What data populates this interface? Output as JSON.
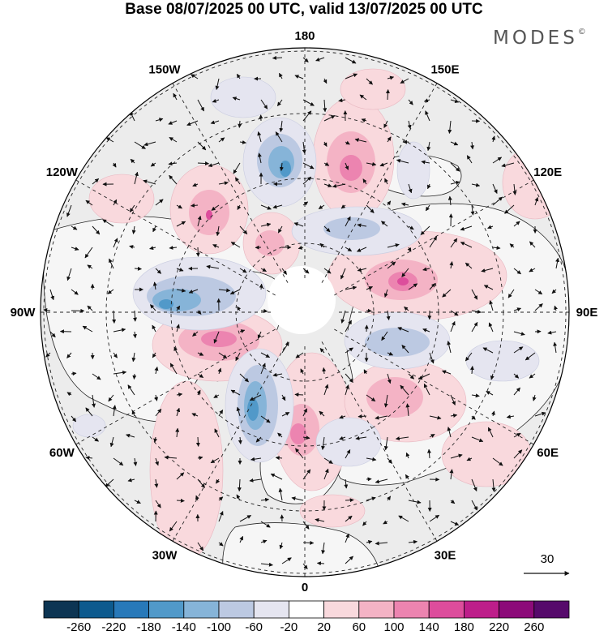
{
  "title": "Base 08/07/2025 00 UTC, valid 13/07/2025 00 UTC",
  "brand": {
    "name": "MODES",
    "mark": "©"
  },
  "longitude_labels": [
    {
      "lon": 180,
      "text": "180"
    },
    {
      "lon": 150,
      "text": "150E"
    },
    {
      "lon": 120,
      "text": "120E"
    },
    {
      "lon": 90,
      "text": "90E"
    },
    {
      "lon": 60,
      "text": "60E"
    },
    {
      "lon": 30,
      "text": "30E"
    },
    {
      "lon": 0,
      "text": "0"
    },
    {
      "lon": -30,
      "text": "30W"
    },
    {
      "lon": -60,
      "text": "60W"
    },
    {
      "lon": -90,
      "text": "90W"
    },
    {
      "lon": -120,
      "text": "120W"
    },
    {
      "lon": -150,
      "text": "150W"
    }
  ],
  "reference_vector": {
    "value": "30"
  },
  "colorbar": {
    "colors": [
      "#0d3553",
      "#0d5a8e",
      "#2879b9",
      "#5199c9",
      "#86b4d8",
      "#bcc9e2",
      "#e5e5f0",
      "#ffffff",
      "#f9d9dd",
      "#f4b3c5",
      "#ec84b0",
      "#dd4d9c",
      "#bd1e8a",
      "#8c0b79",
      "#560a6b"
    ],
    "ticks": [
      "-260",
      "-220",
      "-180",
      "-140",
      "-100",
      "-60",
      "-20",
      "20",
      "60",
      "100",
      "140",
      "180",
      "220",
      "260"
    ]
  }
}
